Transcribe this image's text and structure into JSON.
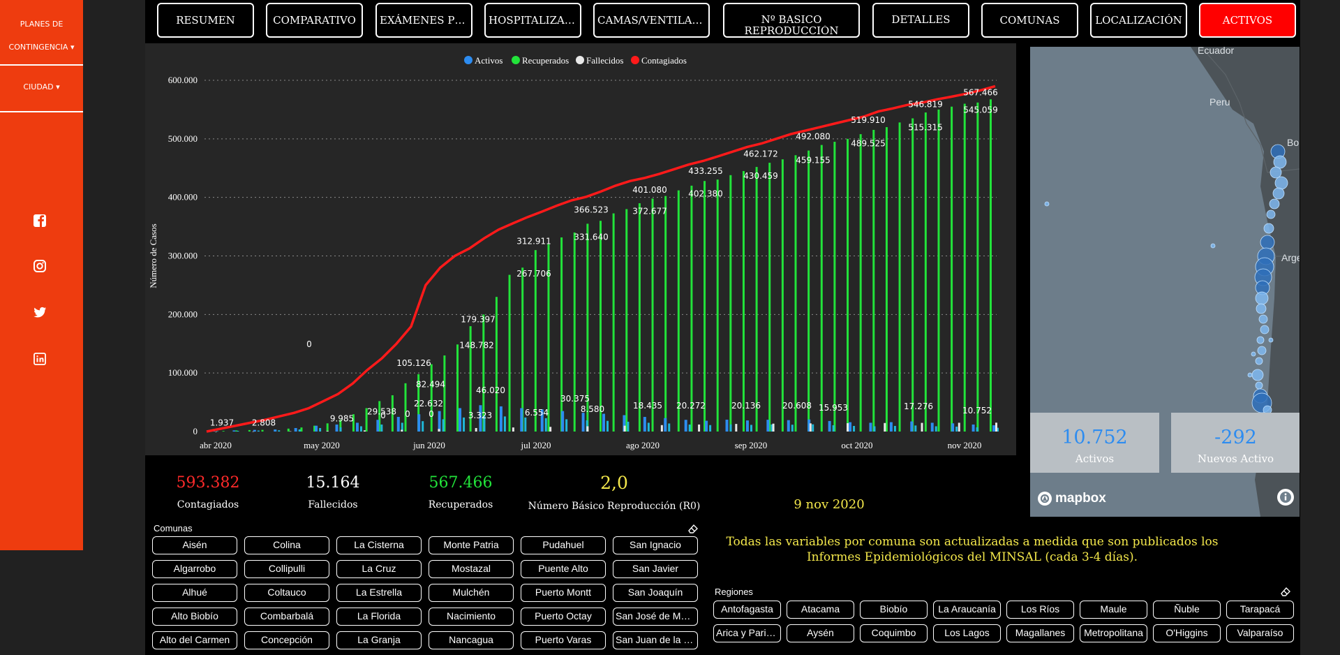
{
  "sidebar": {
    "menu1_line1": "PLANES DE",
    "menu1_line2": "CONTINGENCIA ▾",
    "menu2": "CIUDAD ▾",
    "social_icons": [
      "facebook-icon",
      "instagram-icon",
      "twitter-icon",
      "linkedin-icon"
    ]
  },
  "nav": {
    "resumen": "RESUMEN",
    "comparativo": "COMPARATIVO",
    "examenes": "EXÁMENES PCR",
    "hospitalizados": "HOSPITALIZADOS",
    "camas": "CAMAS/VENTILADORES",
    "basico_l1": "Nº BASICO",
    "basico_l2": "REPRODUCCIÓN",
    "detalles": "DETALLES",
    "comunas": "COMUNAS",
    "localizacion": "LOCALIZACIÓN",
    "activos": "ACTIVOS",
    "active_color": "#ff0000"
  },
  "chart_data": {
    "type": "bar",
    "ylabel": "Número de Casos",
    "ylim": [
      0,
      600000
    ],
    "yticks": [
      "0",
      "100.000",
      "200.000",
      "300.000",
      "400.000",
      "500.000",
      "600.000"
    ],
    "xticks": [
      "abr 2020",
      "may 2020",
      "jun 2020",
      "jul 2020",
      "ago 2020",
      "sep 2020",
      "oct 2020",
      "nov 2020"
    ],
    "legend": [
      {
        "name": "Activos",
        "color": "#2d8cf0"
      },
      {
        "name": "Recuperados",
        "color": "#22e33a"
      },
      {
        "name": "Fallecidos",
        "color": "#e8e8e8"
      },
      {
        "name": "Contagiados",
        "color": "#ff1a1a"
      }
    ],
    "contagiados_labels": [
      "105.126",
      "179.397",
      "312.911",
      "366.523",
      "401.080",
      "433.255",
      "462.172",
      "492.080",
      "519.910",
      "546.819",
      "567.466"
    ],
    "recuperados_labels": [
      "1.937",
      "2.808",
      "9.985",
      "29.538",
      "82.494",
      "148.782",
      "267.706",
      "331.640",
      "372.677",
      "402.380",
      "430.459",
      "459.155",
      "489.525",
      "515.315",
      "545.059"
    ],
    "activos_labels": [
      "0",
      "0",
      "0",
      "0",
      "22.632",
      "46.020",
      "3.323",
      "6.554",
      "30.375",
      "8.580",
      "18.435",
      "20.272",
      "20.136",
      "20.608",
      "15.953",
      "17.276",
      "10.752"
    ],
    "recuperados_series": [
      0,
      1000,
      1900,
      2500,
      2800,
      3500,
      5000,
      7000,
      9985,
      14000,
      20000,
      29538,
      40000,
      52000,
      62000,
      82494,
      98000,
      115000,
      130000,
      148782,
      180000,
      200000,
      230000,
      267706,
      280000,
      310000,
      320000,
      331640,
      340000,
      355000,
      360000,
      372677,
      380000,
      390000,
      398000,
      402380,
      412000,
      420000,
      428000,
      430459,
      438000,
      445000,
      452000,
      459155,
      465000,
      472000,
      480000,
      489525,
      495000,
      500000,
      508000,
      515315,
      520000,
      528000,
      535000,
      545059,
      550000,
      555000,
      560000,
      562000,
      567466
    ],
    "contagiados_series": [
      0,
      5000,
      10000,
      15000,
      20000,
      26000,
      32000,
      40000,
      52000,
      64000,
      82000,
      105126,
      125000,
      150000,
      179397,
      250000,
      280000,
      300000,
      312911,
      330000,
      345000,
      356000,
      366523,
      376000,
      386000,
      395000,
      401080,
      410000,
      420000,
      428000,
      433255,
      440000,
      448000,
      456000,
      462172,
      470000,
      478000,
      486000,
      492080,
      500000,
      508000,
      514000,
      519910,
      526000,
      532000,
      538000,
      546819,
      552000,
      558000,
      562000,
      567466,
      572000,
      577000,
      583000,
      590000
    ],
    "activos_series": [
      1000,
      1937,
      2808,
      3500,
      6000,
      9985,
      12000,
      15000,
      20000,
      25000,
      29538,
      35000,
      40000,
      45000,
      43000,
      40000,
      38000,
      35000,
      32000,
      30375,
      28000,
      25000,
      23000,
      20000,
      18435,
      20272,
      19000,
      20136,
      19500,
      20608,
      18000,
      15953,
      15000,
      16000,
      17276,
      15000,
      14000,
      12000,
      10752
    ],
    "fallecidos_series": [
      0,
      200,
      500,
      1000,
      2000,
      3000,
      4500,
      6000,
      7000,
      8000,
      9000,
      10000,
      11000,
      12000,
      13000,
      13500,
      14000,
      14300,
      14600,
      14800,
      15000,
      15164
    ]
  },
  "kpis": {
    "contagiados_value": "593.382",
    "contagiados_label": "Contagiados",
    "fallecidos_value": "15.164",
    "fallecidos_label": "Fallecidos",
    "recuperados_value": "567.466",
    "recuperados_label": "Recuperados",
    "r0_value": "2,0",
    "r0_label": "Número Básico Reproducción (R0)",
    "date": "9 nov 2020"
  },
  "map": {
    "labels": [
      "Ecuador",
      "Peru",
      "Bo",
      "Arge"
    ],
    "activos_value": "10.752",
    "activos_label": "Activos",
    "nuevos_value": "-292",
    "nuevos_label": "Nuevos Activo",
    "brand": "mapbox"
  },
  "comunas": {
    "title": "Comunas",
    "items": [
      "Aisén",
      "Colina",
      "La Cisterna",
      "Monte Patria",
      "Pudahuel",
      "San Ignacio",
      "Algarrobo",
      "Collipulli",
      "La Cruz",
      "Mostazal",
      "Puente Alto",
      "San Javier",
      "Alhué",
      "Coltauco",
      "La Estrella",
      "Mulchén",
      "Puerto Montt",
      "San Joaquín",
      "Alto Biobío",
      "Combarbalá",
      "La Florida",
      "Nacimiento",
      "Puerto Octay",
      "San José de Maipo",
      "Alto del Carmen",
      "Concepción",
      "La Granja",
      "Nancagua",
      "Puerto Varas",
      "San Juan de la Costa"
    ]
  },
  "note": "Todas las variables por comuna son actualizadas a medida que son publicados los Informes Epidemiológicos del MINSAL (cada 3-4 días).",
  "regiones": {
    "title": "Regiones",
    "items": [
      "Antofagasta",
      "Atacama",
      "Biobío",
      "La Araucanía",
      "Los Ríos",
      "Maule",
      "Ñuble",
      "Tarapacá",
      "Arica y Parinacota",
      "Aysén",
      "Coquimbo",
      "Los Lagos",
      "Magallanes",
      "Metropolitana",
      "O'Higgins",
      "Valparaíso"
    ]
  }
}
